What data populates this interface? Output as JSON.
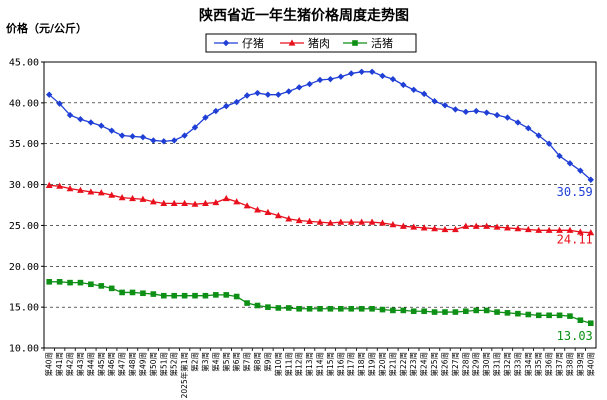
{
  "chart_data": {
    "type": "line",
    "title": "陕西省近一年生猪价格周度走势图",
    "ylabel": "价格（元/公斤）",
    "xlabel": "",
    "ylim": [
      10,
      45
    ],
    "yticks": [
      "10.00",
      "15.00",
      "20.00",
      "25.00",
      "30.00",
      "35.00",
      "40.00",
      "45.00"
    ],
    "grid": "horizontal-dashed",
    "legend_position": "top",
    "categories": [
      "第40周",
      "第41周",
      "第42周",
      "第43周",
      "第44周",
      "第45周",
      "第46周",
      "第47周",
      "第48周",
      "第49周",
      "第50周",
      "第51周",
      "第52周",
      "2025年第1周",
      "第2周",
      "第3周",
      "第4周",
      "第5周",
      "第6周",
      "第7周",
      "第8周",
      "第9周",
      "第10周",
      "第11周",
      "第12周",
      "第13周",
      "第14周",
      "第15周",
      "第16周",
      "第17周",
      "第18周",
      "第19周",
      "第20周",
      "第21周",
      "第22周",
      "第23周",
      "第24周",
      "第25周",
      "第26周",
      "第27周",
      "第28周",
      "第29周",
      "第30周",
      "第31周",
      "第32周",
      "第33周",
      "第34周",
      "第35周",
      "第36周",
      "第37周",
      "第38周",
      "第39周",
      "第40周"
    ],
    "series": [
      {
        "name": "仔猪",
        "color": "#1f3fd6",
        "marker": "diamond",
        "last_label": "30.59",
        "values": [
          41.0,
          39.9,
          38.5,
          38.0,
          37.6,
          37.2,
          36.6,
          36.0,
          35.9,
          35.8,
          35.4,
          35.3,
          35.4,
          36.0,
          37.0,
          38.2,
          39.0,
          39.6,
          40.1,
          40.9,
          41.2,
          41.0,
          41.0,
          41.4,
          41.9,
          42.3,
          42.8,
          42.9,
          43.2,
          43.6,
          43.8,
          43.8,
          43.3,
          42.9,
          42.2,
          41.6,
          41.1,
          40.2,
          39.7,
          39.2,
          38.9,
          39.0,
          38.8,
          38.5,
          38.2,
          37.6,
          36.9,
          36.0,
          35.0,
          33.5,
          32.6,
          31.7,
          30.59
        ]
      },
      {
        "name": "猪肉",
        "color": "#e8101c",
        "marker": "triangle",
        "last_label": "24.11",
        "values": [
          29.9,
          29.8,
          29.5,
          29.3,
          29.1,
          29.0,
          28.7,
          28.4,
          28.3,
          28.2,
          27.9,
          27.7,
          27.7,
          27.7,
          27.6,
          27.7,
          27.8,
          28.3,
          27.9,
          27.4,
          26.9,
          26.6,
          26.2,
          25.8,
          25.6,
          25.5,
          25.4,
          25.3,
          25.4,
          25.4,
          25.4,
          25.4,
          25.3,
          25.1,
          24.9,
          24.8,
          24.7,
          24.6,
          24.5,
          24.5,
          24.9,
          24.9,
          24.9,
          24.8,
          24.7,
          24.6,
          24.5,
          24.4,
          24.4,
          24.4,
          24.4,
          24.2,
          24.11
        ]
      },
      {
        "name": "活猪",
        "color": "#0e8f15",
        "marker": "square",
        "last_label": "13.03",
        "values": [
          18.1,
          18.1,
          18.0,
          18.0,
          17.8,
          17.6,
          17.3,
          16.8,
          16.8,
          16.7,
          16.6,
          16.4,
          16.4,
          16.4,
          16.4,
          16.4,
          16.5,
          16.5,
          16.3,
          15.5,
          15.2,
          15.0,
          14.9,
          14.9,
          14.8,
          14.8,
          14.8,
          14.8,
          14.8,
          14.8,
          14.8,
          14.8,
          14.7,
          14.6,
          14.6,
          14.5,
          14.5,
          14.4,
          14.4,
          14.4,
          14.5,
          14.6,
          14.6,
          14.4,
          14.3,
          14.2,
          14.1,
          14.0,
          14.0,
          14.0,
          13.9,
          13.4,
          13.03
        ]
      }
    ]
  }
}
